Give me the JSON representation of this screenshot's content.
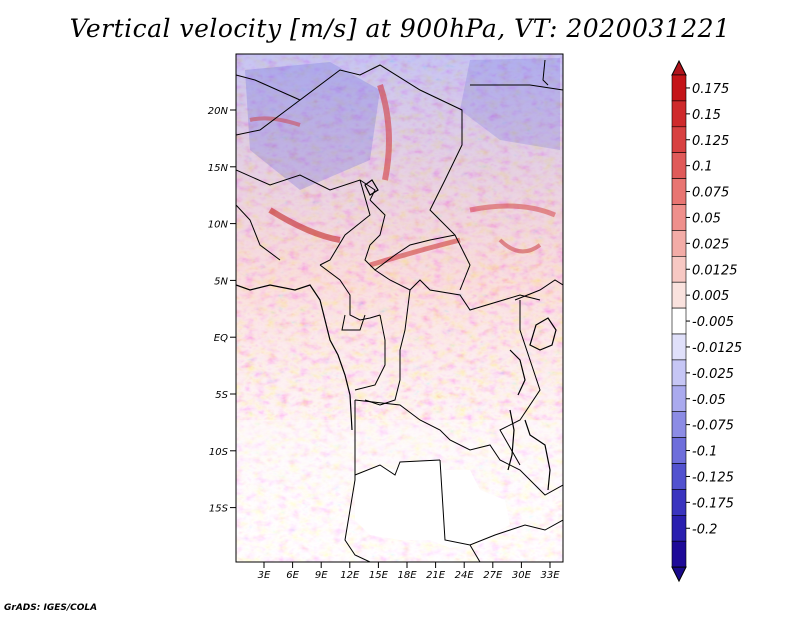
{
  "title": "Vertical velocity [m/s] at 900hPa, VT: 2020031221",
  "credit": "GrADS: IGES/COLA",
  "map": {
    "lat_labels": [
      "20N",
      "15N",
      "10N",
      "5N",
      "EQ",
      "5S",
      "10S",
      "15S"
    ],
    "lon_labels": [
      "3E",
      "6E",
      "9E",
      "12E",
      "15E",
      "18E",
      "21E",
      "24E",
      "27E",
      "30E",
      "33E"
    ]
  },
  "colorbar": {
    "labels": [
      "0.175",
      "0.15",
      "0.125",
      "0.1",
      "0.075",
      "0.05",
      "0.025",
      "0.0125",
      "0.005",
      "-0.005",
      "-0.0125",
      "-0.025",
      "-0.05",
      "-0.075",
      "-0.1",
      "-0.125",
      "-0.175",
      "-0.2"
    ],
    "colors": [
      "#c41418",
      "#cf2a2c",
      "#d84141",
      "#e05a59",
      "#e87572",
      "#ef908c",
      "#f3aca7",
      "#f7c8c3",
      "#fae2de",
      "#ffffff",
      "#e0e0fa",
      "#c6c6f5",
      "#aaaaee",
      "#8c8ce5",
      "#6e6edb",
      "#5252cf",
      "#3a34bf",
      "#2a1faf",
      "#1e0a98"
    ],
    "top_cap_color": "#b0141c",
    "bottom_cap_color": "#1a0a8c"
  }
}
